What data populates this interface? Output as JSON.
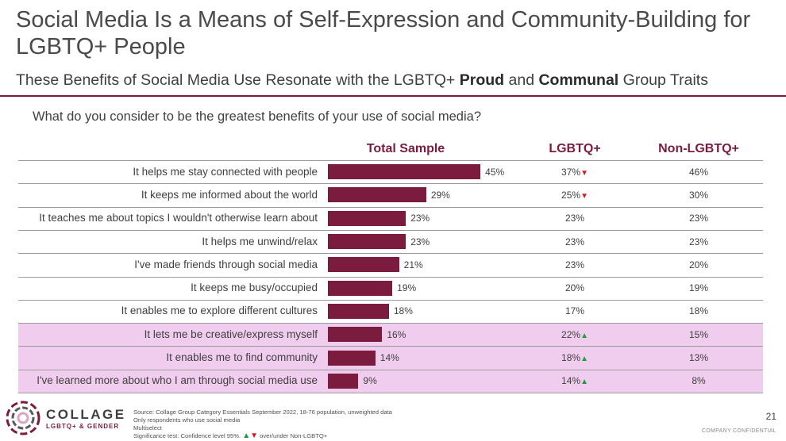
{
  "title": "Social Media Is a Means of Self-Expression and Community-Building for LGBTQ+ People",
  "subtitle": {
    "prefix": "These Benefits of Social Media Use Resonate with the LGBTQ+ ",
    "bold1": "Proud",
    "middle": " and ",
    "bold2": "Communal",
    "suffix": " Group Traits"
  },
  "question": "What do you consider to be the greatest benefits of your use of social media?",
  "chart_data": {
    "type": "bar",
    "orientation": "horizontal",
    "columns": [
      "Total Sample",
      "LGBTQ+",
      "Non-LGBTQ+"
    ],
    "categories": [
      "It helps me stay connected with people",
      "It keeps me informed about the world",
      "It teaches me about topics I wouldn't otherwise learn about",
      "It helps me unwind/relax",
      "I've made friends through social media",
      "It keeps me busy/occupied",
      "It enables me to explore different cultures",
      "It lets me be creative/express myself",
      "It enables me to find community",
      "I've learned more about who I am through social media use"
    ],
    "series": [
      {
        "name": "Total Sample",
        "values": [
          45,
          29,
          23,
          23,
          21,
          19,
          18,
          16,
          14,
          9
        ]
      },
      {
        "name": "LGBTQ+",
        "values": [
          37,
          25,
          23,
          23,
          23,
          20,
          17,
          22,
          18,
          14
        ]
      },
      {
        "name": "Non-LGBTQ+",
        "values": [
          46,
          30,
          23,
          23,
          20,
          19,
          18,
          15,
          13,
          8
        ]
      }
    ],
    "lgbtq_significance": [
      "down",
      "down",
      "",
      "",
      "",
      "",
      "",
      "up",
      "up",
      "up"
    ],
    "highlighted_rows": [
      7,
      8,
      9
    ],
    "bar_color": "#7b1c3e",
    "highlight_color": "#f0cdee",
    "up_color": "#1a9f3a",
    "down_color": "#d21f1f",
    "value_suffix": "%"
  },
  "footer": {
    "brand": "COLLAGE",
    "brand_sub": "LGBTQ+ & GENDER",
    "source_lines": [
      "Source: Collage Group Category Essentials September 2022, 18-76 population, unweighted data",
      "Only respondents who use social media",
      "Multiselect"
    ],
    "significance_prefix": "Significance test: Confidence level 95%.",
    "significance_suffix": "over/under Non-LGBTQ+",
    "page_number": "21",
    "confidential": "COMPANY CONFIDENTIAL"
  }
}
